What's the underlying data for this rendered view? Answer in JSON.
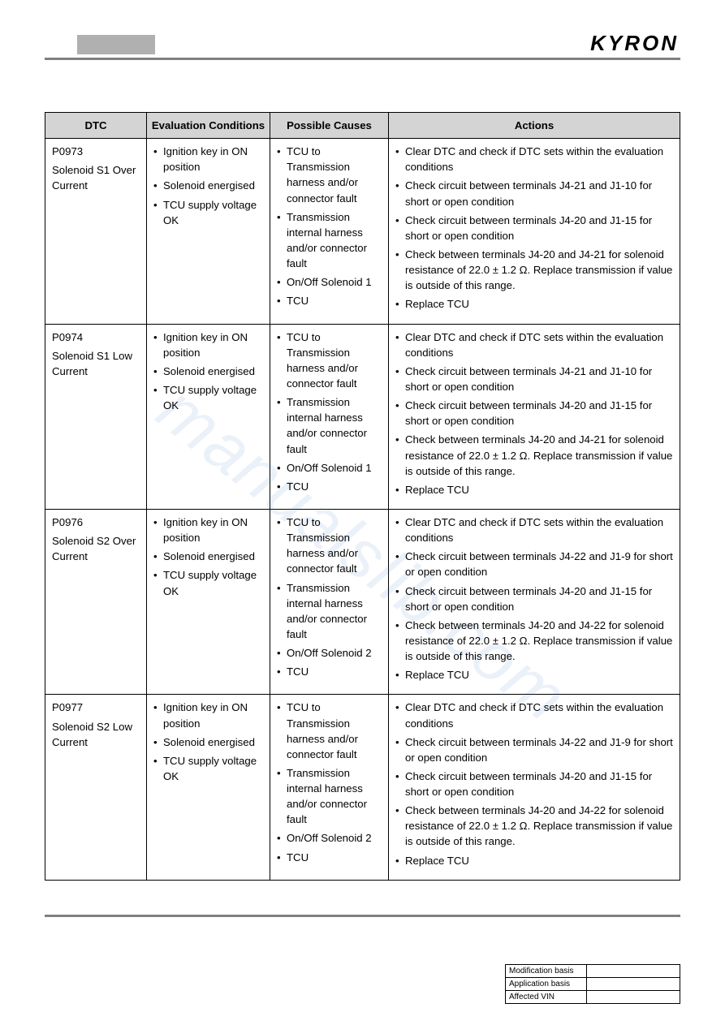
{
  "brand": "KYRON",
  "watermark": "manualslib.com",
  "table": {
    "headers": [
      "DTC",
      "Evaluation Conditions",
      "Possible Causes",
      "Actions"
    ],
    "rows": [
      {
        "code": "P0973",
        "desc": "Solenoid S1 Over Current",
        "eval": [
          "Ignition key in ON position",
          "Solenoid energised",
          "TCU supply voltage OK"
        ],
        "causes": [
          "TCU to Transmission harness and/or connector fault",
          "Transmission internal harness and/or connector fault",
          "On/Off Solenoid 1",
          "TCU"
        ],
        "actions": [
          "Clear DTC and check if DTC sets within the evaluation conditions",
          "Check circuit between terminals J4-21 and J1-10 for short or open condition",
          "Check circuit between terminals J4-20 and J1-15 for short or open condition",
          "Check between terminals J4-20 and J4-21 for solenoid resistance of 22.0 ± 1.2 Ω. Replace transmission if value is outside of this range.",
          "Replace TCU"
        ]
      },
      {
        "code": "P0974",
        "desc": "Solenoid S1 Low Current",
        "eval": [
          "Ignition key in ON position",
          "Solenoid energised",
          "TCU supply voltage OK"
        ],
        "causes": [
          "TCU to Transmission harness and/or connector fault",
          "Transmission internal harness and/or connector fault",
          "On/Off Solenoid 1",
          "TCU"
        ],
        "actions": [
          "Clear DTC and check if DTC sets within the evaluation conditions",
          "Check circuit between terminals J4-21 and J1-10 for short or open condition",
          "Check circuit between terminals J4-20 and J1-15 for short or open condition",
          "Check between terminals J4-20 and J4-21 for solenoid resistance of 22.0 ± 1.2 Ω. Replace transmission if value is outside of this range.",
          "Replace TCU"
        ]
      },
      {
        "code": "P0976",
        "desc": "Solenoid S2 Over Current",
        "eval": [
          "Ignition key in ON position",
          "Solenoid energised",
          "TCU supply voltage OK"
        ],
        "causes": [
          "TCU to Transmission harness and/or connector fault",
          "Transmission internal harness and/or connector fault",
          "On/Off Solenoid 2",
          "TCU"
        ],
        "actions": [
          "Clear DTC and check if DTC sets within the evaluation conditions",
          "Check circuit between terminals J4-22 and J1-9 for short or open condition",
          "Check circuit between terminals J4-20 and J1-15 for short or open condition",
          "Check between terminals J4-20 and J4-22 for solenoid resistance of 22.0 ± 1.2 Ω. Replace transmission if value is outside of this range.",
          "Replace TCU"
        ]
      },
      {
        "code": "P0977",
        "desc": "Solenoid S2 Low Current",
        "eval": [
          "Ignition key in ON position",
          "Solenoid energised",
          "TCU supply voltage OK"
        ],
        "causes": [
          "TCU to Transmission harness and/or connector fault",
          "Transmission internal harness and/or connector fault",
          "On/Off Solenoid 2",
          "TCU"
        ],
        "actions": [
          "Clear DTC and check if DTC sets within the evaluation conditions",
          "Check circuit between terminals J4-22 and J1-9 for short or open condition",
          "Check circuit between terminals J4-20 and J1-15 for short or open condition",
          "Check between terminals J4-20 and J4-22 for solenoid resistance of 22.0 ± 1.2 Ω. Replace transmission if value is outside of this range.",
          "Replace TCU"
        ]
      }
    ]
  },
  "footer": {
    "rows": [
      {
        "label": "Modification basis",
        "value": ""
      },
      {
        "label": "Application basis",
        "value": ""
      },
      {
        "label": "Affected VIN",
        "value": ""
      }
    ]
  }
}
